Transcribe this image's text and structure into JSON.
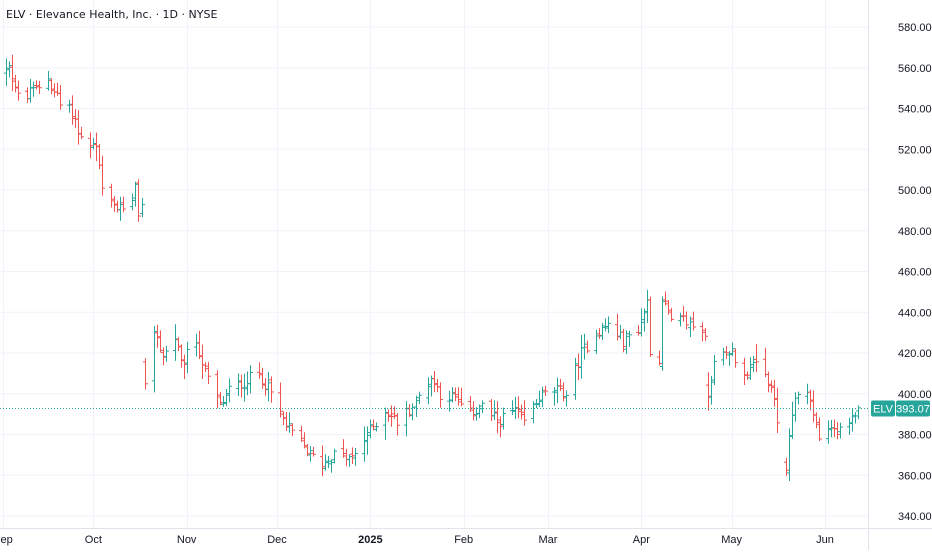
{
  "chart_data": {
    "type": "ohlc",
    "title": "ELV · Elevance Health, Inc. · 1D · NYSE",
    "ylim": [
      330,
      590
    ],
    "y_ticks": [
      "580.00",
      "560.00",
      "540.00",
      "520.00",
      "500.00",
      "480.00",
      "460.00",
      "440.00",
      "420.00",
      "400.00",
      "380.00",
      "360.00",
      "340.00"
    ],
    "y_tick_values": [
      580,
      560,
      540,
      520,
      500,
      480,
      460,
      440,
      420,
      400,
      380,
      360,
      340
    ],
    "x_labels": [
      "Sep",
      "Oct",
      "Nov",
      "Dec",
      "2025",
      "Feb",
      "Mar",
      "Apr",
      "May",
      "Jun"
    ],
    "x_label_dates": [
      "2024-09-01",
      "2024-10-01",
      "2024-11-01",
      "2024-12-01",
      "2025-01-01",
      "2025-02-01",
      "2025-03-01",
      "2025-04-01",
      "2025-05-01",
      "2025-06-01"
    ],
    "x_bold_label": "2025",
    "grid": true,
    "colors": {
      "up": "#26a69a",
      "down": "#ef5350",
      "last_price_line": "#26a69a",
      "label_bg": "#26a69a",
      "label_text": "#ffffff"
    },
    "last_price": {
      "symbol": "ELV",
      "value": "393.07",
      "price": 393.07
    },
    "pivots": [
      [
        "2024-08-30",
        558
      ],
      [
        "2024-09-03",
        562
      ],
      [
        "2024-09-06",
        545
      ],
      [
        "2024-09-11",
        548
      ],
      [
        "2024-09-16",
        555
      ],
      [
        "2024-09-20",
        542
      ],
      [
        "2024-09-24",
        538
      ],
      [
        "2024-09-27",
        525
      ],
      [
        "2024-10-02",
        520
      ],
      [
        "2024-10-04",
        500
      ],
      [
        "2024-10-07",
        493
      ],
      [
        "2024-10-10",
        490
      ],
      [
        "2024-10-14",
        497
      ],
      [
        "2024-10-15",
        505
      ],
      [
        "2024-10-16",
        486
      ],
      [
        "2024-10-17",
        494
      ],
      [
        "2024-10-18",
        402
      ],
      [
        "2024-10-21",
        432
      ],
      [
        "2024-10-24",
        418
      ],
      [
        "2024-10-28",
        428
      ],
      [
        "2024-10-30",
        414
      ],
      [
        "2024-11-04",
        426
      ],
      [
        "2024-11-07",
        410
      ],
      [
        "2024-11-12",
        394
      ],
      [
        "2024-11-15",
        402
      ],
      [
        "2024-11-20",
        406
      ],
      [
        "2024-11-25",
        410
      ],
      [
        "2024-11-29",
        400
      ],
      [
        "2024-12-04",
        384
      ],
      [
        "2024-12-09",
        376
      ],
      [
        "2024-12-12",
        370
      ],
      [
        "2024-12-16",
        366
      ],
      [
        "2024-12-20",
        370
      ],
      [
        "2024-12-26",
        368
      ],
      [
        "2024-12-31",
        380
      ],
      [
        "2025-01-06",
        392
      ],
      [
        "2025-01-10",
        386
      ],
      [
        "2025-01-15",
        394
      ],
      [
        "2025-01-21",
        408
      ],
      [
        "2025-01-24",
        400
      ],
      [
        "2025-01-28",
        398
      ],
      [
        "2025-02-03",
        390
      ],
      [
        "2025-02-07",
        394
      ],
      [
        "2025-02-12",
        386
      ],
      [
        "2025-02-18",
        392
      ],
      [
        "2025-02-21",
        386
      ],
      [
        "2025-02-26",
        398
      ],
      [
        "2025-03-03",
        402
      ],
      [
        "2025-03-07",
        400
      ],
      [
        "2025-03-12",
        420
      ],
      [
        "2025-03-17",
        430
      ],
      [
        "2025-03-21",
        434
      ],
      [
        "2025-03-26",
        426
      ],
      [
        "2025-03-31",
        432
      ],
      [
        "2025-04-03",
        445
      ],
      [
        "2025-04-04",
        422
      ],
      [
        "2025-04-07",
        415
      ],
      [
        "2025-04-08",
        448
      ],
      [
        "2025-04-11",
        434
      ],
      [
        "2025-04-15",
        436
      ],
      [
        "2025-04-22",
        430
      ],
      [
        "2025-04-23",
        400
      ],
      [
        "2025-04-25",
        415
      ],
      [
        "2025-04-30",
        422
      ],
      [
        "2025-05-05",
        410
      ],
      [
        "2025-05-09",
        414
      ],
      [
        "2025-05-13",
        406
      ],
      [
        "2025-05-15",
        395
      ],
      [
        "2025-05-16",
        385
      ],
      [
        "2025-05-19",
        363
      ],
      [
        "2025-05-21",
        392
      ],
      [
        "2025-05-23",
        402
      ],
      [
        "2025-05-26",
        400
      ],
      [
        "2025-05-28",
        390
      ],
      [
        "2025-05-30",
        378
      ],
      [
        "2025-06-04",
        382
      ],
      [
        "2025-06-09",
        385
      ],
      [
        "2025-06-12",
        393.07
      ]
    ]
  }
}
